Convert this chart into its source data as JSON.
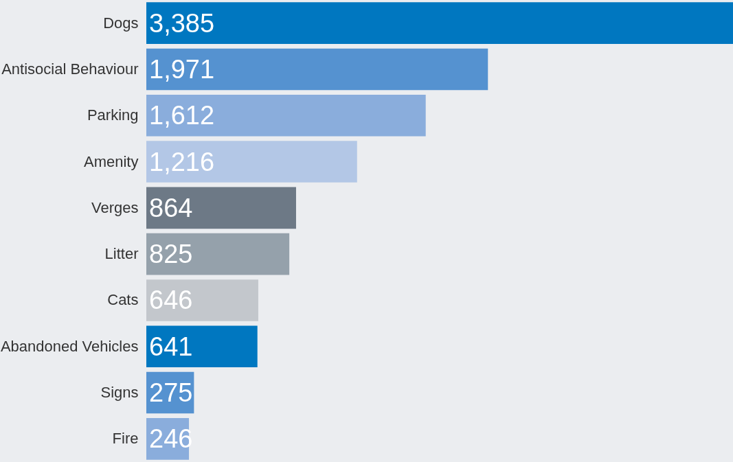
{
  "chart_data": {
    "type": "bar",
    "orientation": "horizontal",
    "categories": [
      "Dogs",
      "Antisocial Behaviour",
      "Parking",
      "Amenity",
      "Verges",
      "Litter",
      "Cats",
      "Abandoned Vehicles",
      "Signs",
      "Fire"
    ],
    "values": [
      3385,
      1971,
      1612,
      1216,
      864,
      825,
      646,
      641,
      275,
      246
    ],
    "colors": [
      "#0077c0",
      "#5592d0",
      "#8aaddc",
      "#b3c7e6",
      "#6d7986",
      "#95a1ab",
      "#c3c7cc",
      "#0077c0",
      "#5592d0",
      "#8aaddc"
    ],
    "value_labels": [
      "3,385",
      "1,971",
      "1,612",
      "1,216",
      "864",
      "825",
      "646",
      "641",
      "275",
      "246"
    ]
  }
}
